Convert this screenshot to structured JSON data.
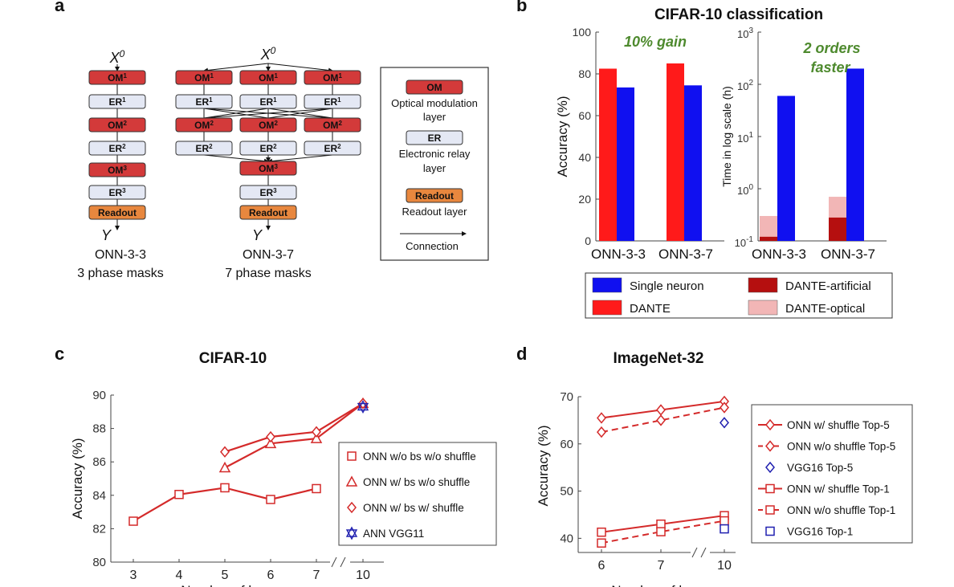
{
  "panels": {
    "a": "a",
    "b": "b",
    "c": "c",
    "d": "d"
  },
  "diagram": {
    "input_label": "X",
    "input_sup": "0",
    "output_label": "Y",
    "om_labels": [
      "OM",
      "OM",
      "OM"
    ],
    "om_sups": [
      "1",
      "2",
      "3"
    ],
    "er_labels": [
      "ER",
      "ER",
      "ER"
    ],
    "er_sups": [
      "1",
      "2",
      "3"
    ],
    "readout": "Readout",
    "left_name": "ONN-3-3",
    "left_desc": "3 phase masks",
    "right_name": "ONN-3-7",
    "right_desc": "7 phase masks",
    "legend": {
      "om_box": "OM",
      "om_line1": "Optical modulation",
      "om_line2": "layer",
      "er_box": "ER",
      "er_line1": "Electronic relay",
      "er_line2": "layer",
      "readout_box": "Readout",
      "readout_text": "Readout layer",
      "connection": "Connection"
    }
  },
  "colors": {
    "om": "#d33a3a",
    "er": "#e4e8f4",
    "readout": "#e8873e",
    "dante": "#ff1a1a",
    "single": "#1010f0",
    "dante_art": "#b50f0f",
    "dante_opt": "#f2b6b6",
    "line_red": "#d42a2a",
    "vgg_blue": "#2020b0",
    "gain_green": "#4e8a2e"
  },
  "chart_data": [
    {
      "type": "bar",
      "title": "CIFAR-10 classification",
      "ylabel": "Accuracy (%)",
      "categories": [
        "ONN-3-3",
        "ONN-3-7"
      ],
      "series": [
        {
          "name": "DANTE",
          "values": [
            82.5,
            85
          ]
        },
        {
          "name": "Single neuron",
          "values": [
            73.5,
            74.5
          ]
        }
      ],
      "ylim": [
        0,
        100
      ],
      "yticks": [
        "0",
        "20",
        "40",
        "60",
        "80",
        "100"
      ],
      "annotation": "10% gain"
    },
    {
      "type": "bar",
      "ylabel": "Time in log scale (h)",
      "yscale": "log",
      "categories": [
        "ONN-3-3",
        "ONN-3-7"
      ],
      "series": [
        {
          "name": "DANTE-artificial",
          "values": [
            0.12,
            0.28
          ]
        },
        {
          "name": "DANTE-optical",
          "values": [
            0.3,
            0.7
          ]
        },
        {
          "name": "Single neuron",
          "values": [
            60,
            200
          ]
        }
      ],
      "ylim": [
        0.1,
        1000
      ],
      "yticks": [
        {
          "base": "10",
          "exp": "-1"
        },
        {
          "base": "10",
          "exp": "0"
        },
        {
          "base": "10",
          "exp": "1"
        },
        {
          "base": "10",
          "exp": "2"
        },
        {
          "base": "10",
          "exp": "3"
        }
      ],
      "annotation_line1": "2 orders",
      "annotation_line2": "faster"
    },
    {
      "type": "line",
      "title": "CIFAR-10",
      "xlabel": "Number of layers",
      "ylabel": "Accuracy (%)",
      "xticks": [
        "3",
        "4",
        "5",
        "6",
        "7",
        "10"
      ],
      "ylim": [
        80,
        90
      ],
      "yticks": [
        "80",
        "82",
        "84",
        "86",
        "88",
        "90"
      ],
      "series": [
        {
          "name": "ONN w/o bs w/o shuffle",
          "x": [
            "3",
            "4",
            "5",
            "6",
            "7"
          ],
          "values": [
            82.45,
            84.05,
            84.45,
            83.75,
            84.4
          ]
        },
        {
          "name": "ONN w/ bs w/o shuffle",
          "x": [
            "5",
            "6",
            "7",
            "10"
          ],
          "values": [
            85.65,
            87.1,
            87.4,
            89.5
          ]
        },
        {
          "name": "ONN w/ bs w/ shuffle",
          "x": [
            "5",
            "6",
            "7",
            "10"
          ],
          "values": [
            86.6,
            87.5,
            87.8,
            89.5
          ]
        },
        {
          "name": "ANN VGG11",
          "x": [
            "10"
          ],
          "values": [
            89.3
          ]
        }
      ]
    },
    {
      "type": "line",
      "title": "ImageNet-32",
      "xlabel": "Number of layers",
      "ylabel": "Accuracy (%)",
      "xticks": [
        "6",
        "7",
        "10"
      ],
      "ylim": [
        37,
        70
      ],
      "yticks": [
        "40",
        "50",
        "60",
        "70"
      ],
      "series": [
        {
          "name": "ONN w/ shuffle Top-5",
          "x": [
            "6",
            "7",
            "10"
          ],
          "values": [
            65.5,
            67.2,
            69
          ]
        },
        {
          "name": "ONN w/o shuffle Top-5",
          "x": [
            "6",
            "7",
            "10"
          ],
          "values": [
            62.5,
            65,
            67.7
          ]
        },
        {
          "name": "VGG16 Top-5",
          "x": [
            "10"
          ],
          "values": [
            64.5
          ]
        },
        {
          "name": "ONN w/ shuffle Top-1",
          "x": [
            "6",
            "7",
            "10"
          ],
          "values": [
            41.3,
            43,
            44.8
          ]
        },
        {
          "name": "ONN w/o shuffle Top-1",
          "x": [
            "6",
            "7",
            "10"
          ],
          "values": [
            39,
            41.4,
            43.7
          ]
        },
        {
          "name": "VGG16 Top-1",
          "x": [
            "10"
          ],
          "values": [
            42
          ]
        }
      ]
    }
  ]
}
